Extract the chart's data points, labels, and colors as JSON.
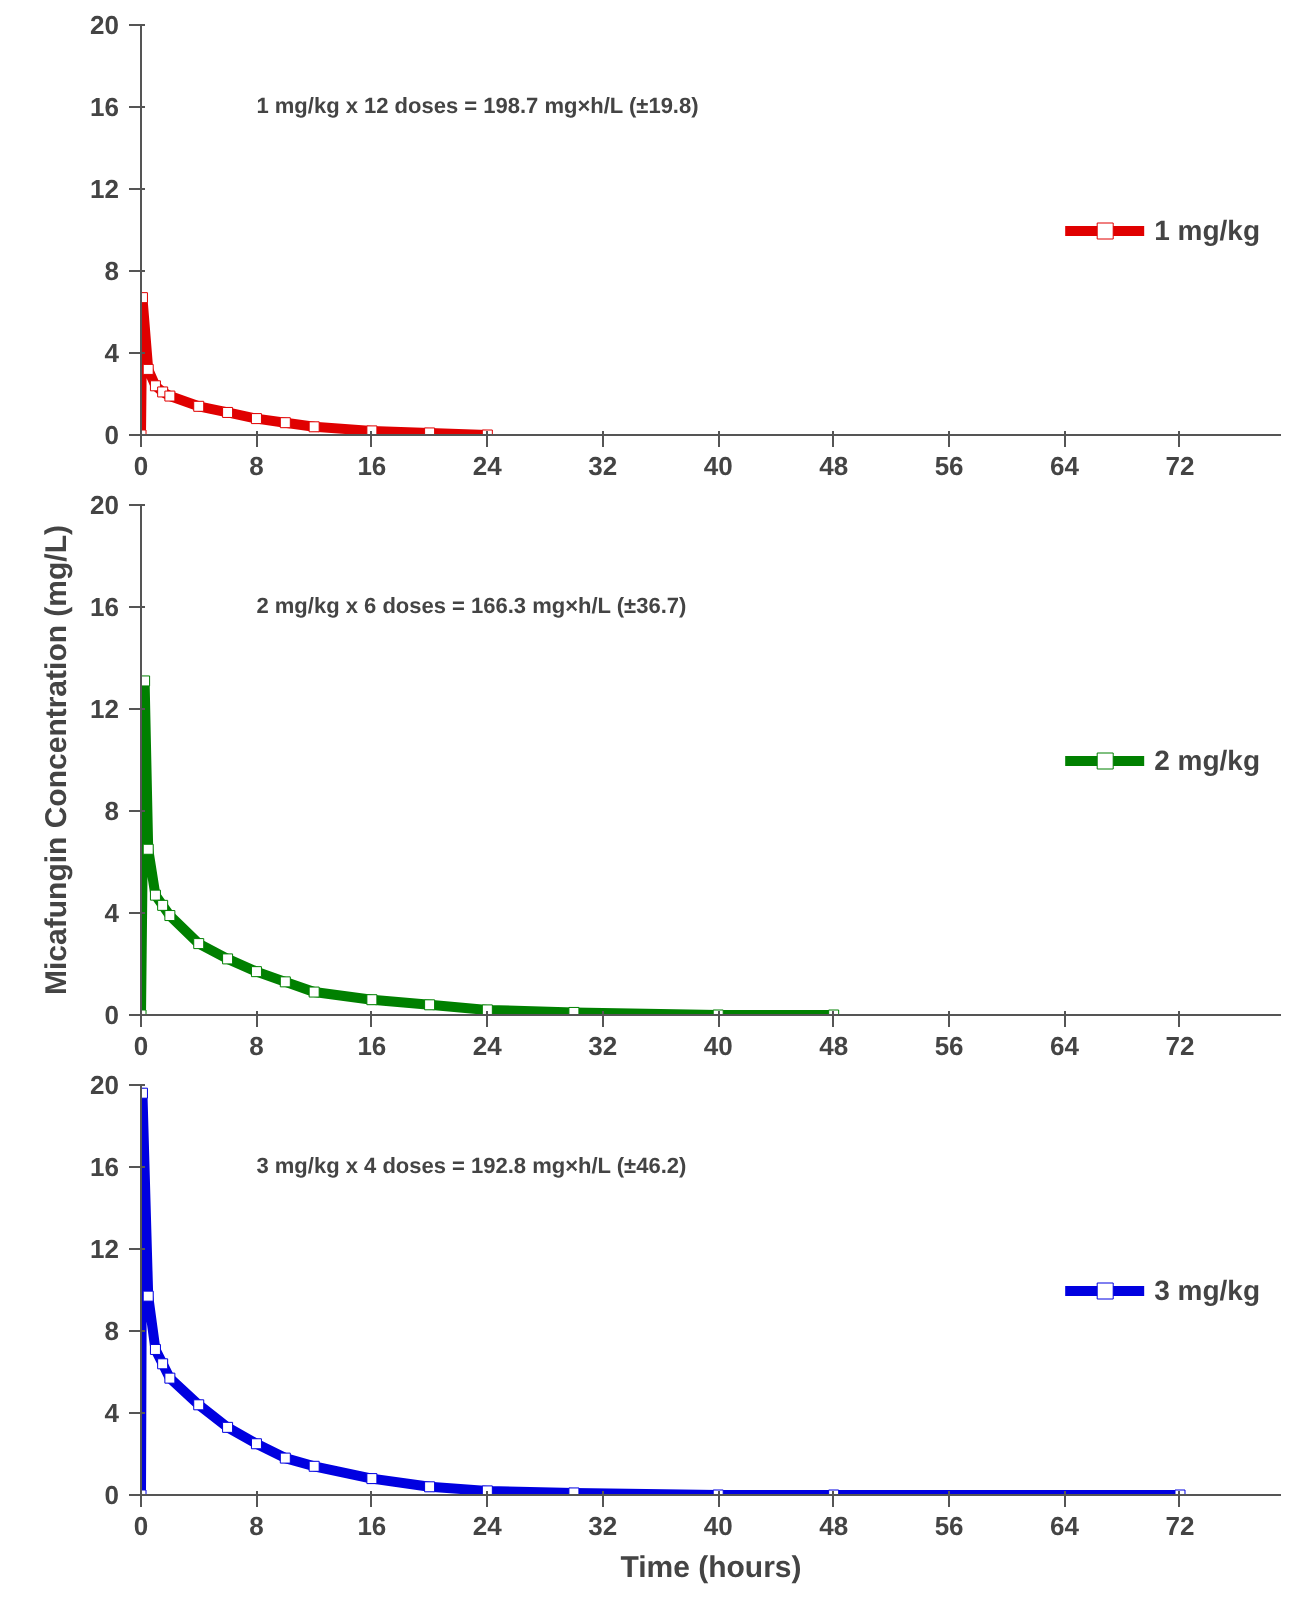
{
  "chart_data": [
    {
      "type": "line",
      "annotations": [
        "1 mg/kg x 12 doses = 198.7 mg×h/L (±19.8)"
      ],
      "xlim": [
        0,
        79
      ],
      "ylim": [
        0,
        20
      ],
      "xticks": [
        0,
        8,
        16,
        24,
        32,
        40,
        48,
        56,
        64,
        72
      ],
      "yticks": [
        0,
        4,
        8,
        12,
        16,
        20
      ],
      "legend": "right",
      "marker": "square",
      "line_style": "solid",
      "grid": false,
      "series": [
        {
          "name": "1 mg/kg",
          "color": "#e00000",
          "x": [
            0,
            0.1,
            0.5,
            1,
            1.5,
            2,
            4,
            6,
            8,
            10,
            12,
            16,
            20,
            24
          ],
          "values": [
            0,
            6.7,
            3.2,
            2.4,
            2.1,
            1.9,
            1.4,
            1.1,
            0.8,
            0.6,
            0.4,
            0.2,
            0.1,
            0.0
          ]
        }
      ]
    },
    {
      "type": "line",
      "ylabel": "Micafungin Concentration (mg/L)",
      "annotations": [
        "2 mg/kg x 6 doses = 166.3 mg×h/L (±36.7)"
      ],
      "xlim": [
        0,
        79
      ],
      "ylim": [
        0,
        20
      ],
      "xticks": [
        0,
        8,
        16,
        24,
        32,
        40,
        48,
        56,
        64,
        72
      ],
      "yticks": [
        0,
        4,
        8,
        12,
        16,
        20
      ],
      "legend": "right",
      "marker": "square",
      "line_style": "solid",
      "grid": false,
      "series": [
        {
          "name": "2 mg/kg",
          "color": "#008000",
          "x": [
            0,
            0.25,
            0.5,
            1,
            1.5,
            2,
            4,
            6,
            8,
            10,
            12,
            16,
            20,
            24,
            30,
            40,
            48
          ],
          "values": [
            0,
            13.1,
            6.5,
            4.7,
            4.3,
            3.9,
            2.8,
            2.2,
            1.7,
            1.3,
            0.9,
            0.6,
            0.4,
            0.2,
            0.1,
            0.0,
            0.0
          ]
        }
      ]
    },
    {
      "type": "line",
      "xlabel": "Time (hours)",
      "annotations": [
        "3 mg/kg x 4 doses = 192.8 mg×h/L (±46.2)"
      ],
      "xlim": [
        0,
        79
      ],
      "ylim": [
        0,
        20
      ],
      "xticks": [
        0,
        8,
        16,
        24,
        32,
        40,
        48,
        56,
        64,
        72
      ],
      "yticks": [
        0,
        4,
        8,
        12,
        16,
        20
      ],
      "legend": "right",
      "marker": "square",
      "line_style": "solid",
      "grid": false,
      "series": [
        {
          "name": "3 mg/kg",
          "color": "#0000e0",
          "x": [
            0,
            0.1,
            0.5,
            1,
            1.5,
            2,
            4,
            6,
            8,
            10,
            12,
            16,
            20,
            24,
            30,
            40,
            48,
            72
          ],
          "values": [
            0,
            19.6,
            9.7,
            7.1,
            6.4,
            5.7,
            4.4,
            3.3,
            2.5,
            1.8,
            1.4,
            0.8,
            0.4,
            0.2,
            0.1,
            0.0,
            0.0,
            0.0
          ]
        }
      ]
    }
  ]
}
